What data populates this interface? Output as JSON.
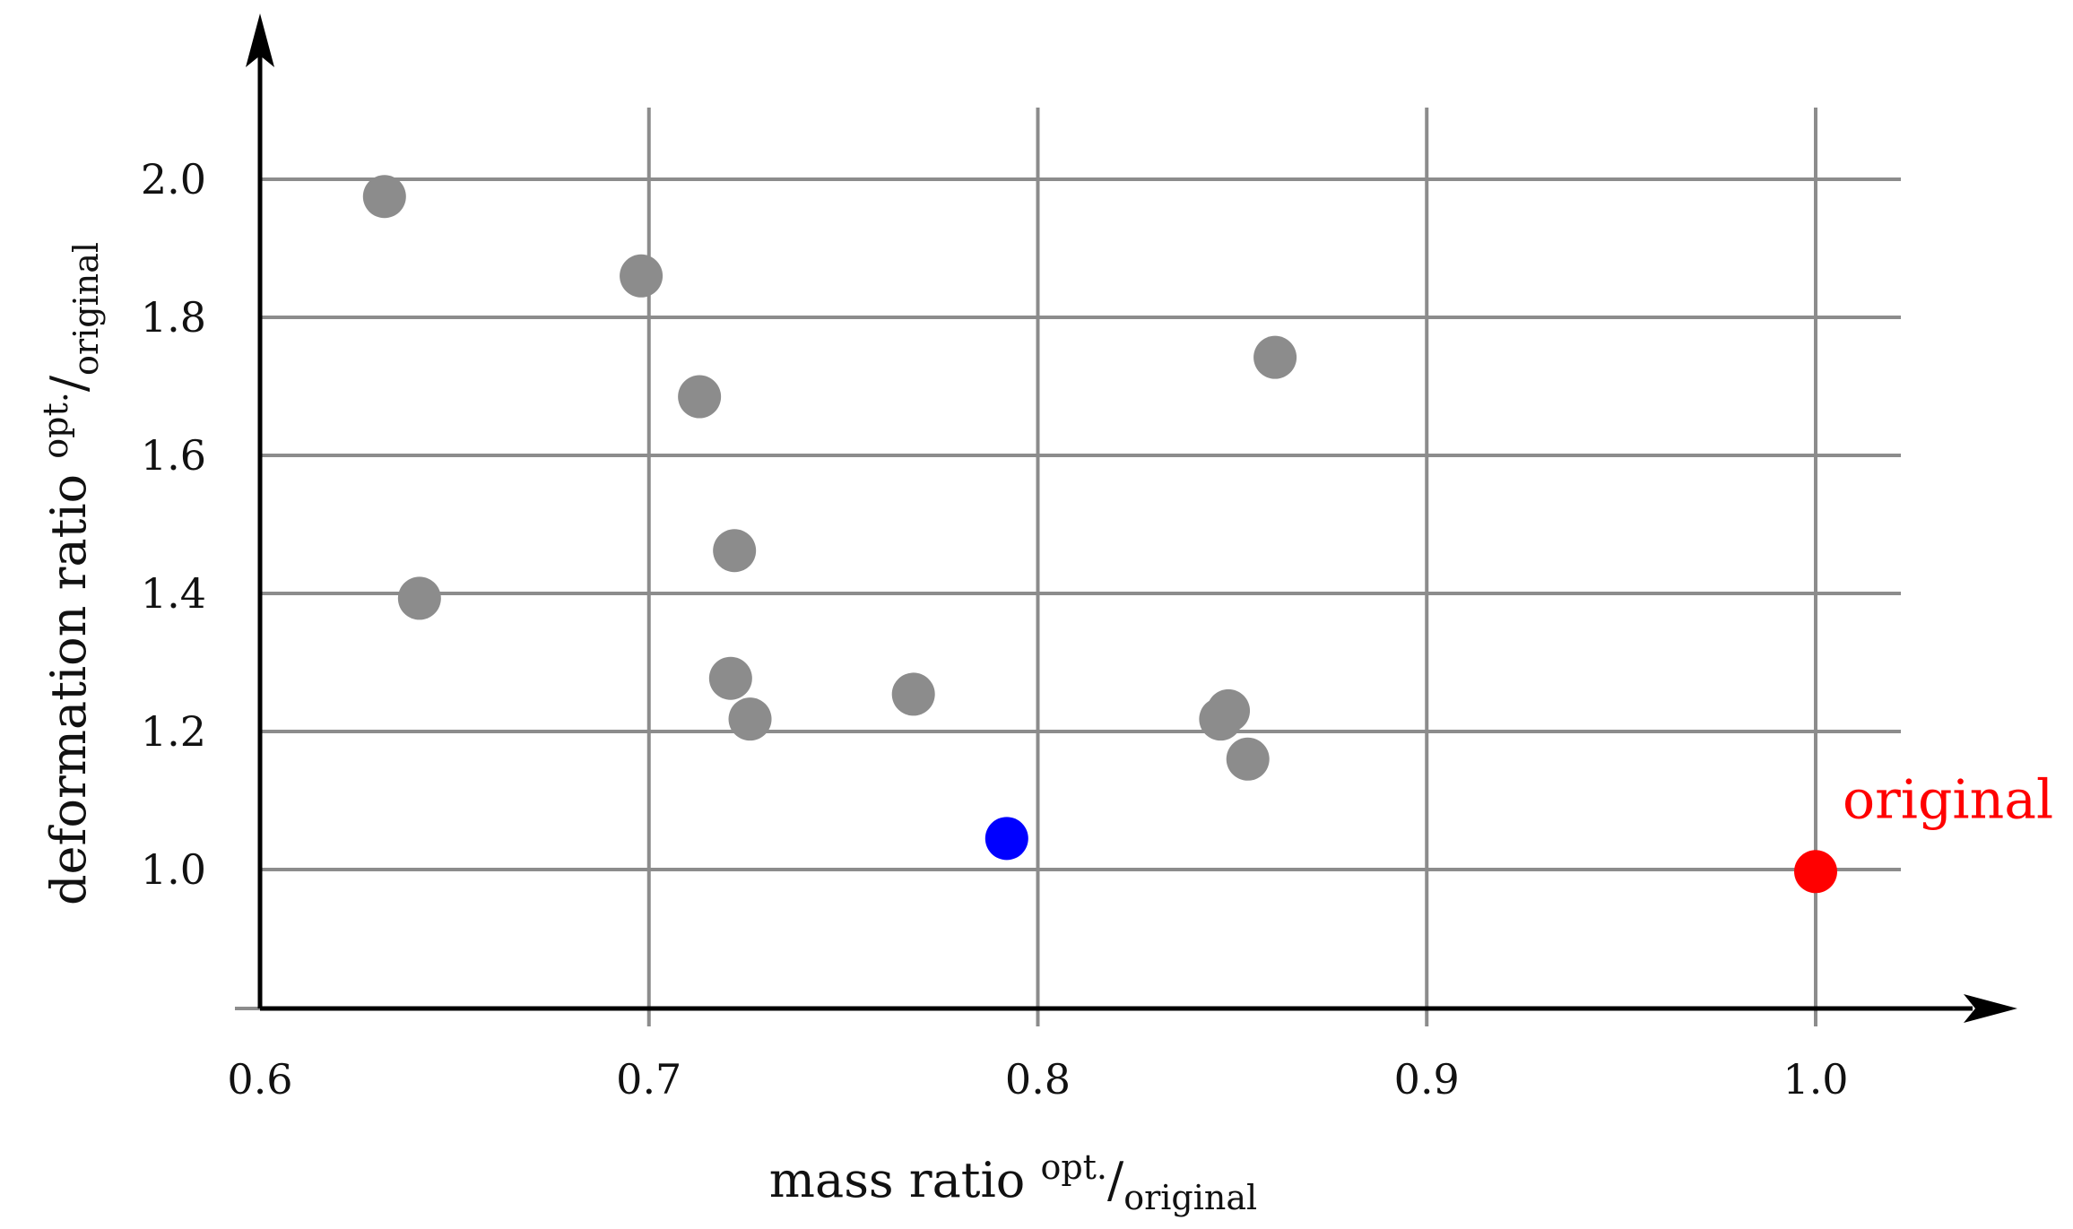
{
  "chart_data": {
    "type": "scatter",
    "xlabel": {
      "main": "mass ratio ",
      "sup": "opt.",
      "slash": "/",
      "sub": "original"
    },
    "ylabel": {
      "main": "deformation ratio ",
      "sup": "opt.",
      "slash": "/",
      "sub": "original"
    },
    "xlim": [
      0.6,
      1.02
    ],
    "ylim": [
      0.8,
      2.2
    ],
    "x_ticks": [
      0.6,
      0.7,
      0.8,
      0.9,
      1.0
    ],
    "x_tick_labels": [
      "0.6",
      "0.7",
      "0.8",
      "0.9",
      "1.0"
    ],
    "y_ticks": [
      1.0,
      1.2,
      1.4,
      1.6,
      1.8,
      2.0
    ],
    "y_tick_labels": [
      "1.0",
      "1.2",
      "1.4",
      "1.6",
      "1.8",
      "2.0"
    ],
    "grid": true,
    "points": [
      {
        "x": 0.632,
        "y": 1.975,
        "color": "#8c8c8c"
      },
      {
        "x": 0.698,
        "y": 1.86,
        "color": "#8c8c8c"
      },
      {
        "x": 0.713,
        "y": 1.685,
        "color": "#8c8c8c"
      },
      {
        "x": 0.861,
        "y": 1.742,
        "color": "#8c8c8c"
      },
      {
        "x": 0.722,
        "y": 1.462,
        "color": "#8c8c8c"
      },
      {
        "x": 0.641,
        "y": 1.393,
        "color": "#8c8c8c"
      },
      {
        "x": 0.721,
        "y": 1.277,
        "color": "#8c8c8c"
      },
      {
        "x": 0.726,
        "y": 1.218,
        "color": "#8c8c8c"
      },
      {
        "x": 0.768,
        "y": 1.254,
        "color": "#8c8c8c"
      },
      {
        "x": 0.849,
        "y": 1.23,
        "color": "#8c8c8c"
      },
      {
        "x": 0.847,
        "y": 1.218,
        "color": "#8c8c8c"
      },
      {
        "x": 0.854,
        "y": 1.16,
        "color": "#8c8c8c"
      },
      {
        "x": 0.792,
        "y": 1.045,
        "color": "#0000ff"
      },
      {
        "x": 1.0,
        "y": 0.997,
        "color": "#ff0000"
      }
    ],
    "annotation": {
      "text": "original",
      "x": 1.0,
      "y": 0.997,
      "color": "#ff0000"
    }
  }
}
